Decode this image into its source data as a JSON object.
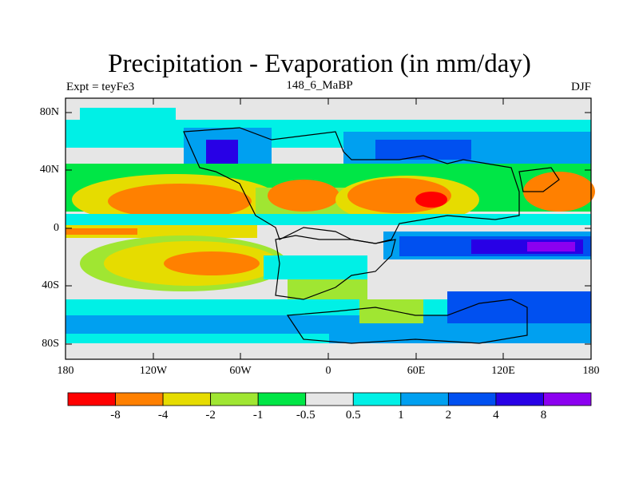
{
  "title": "Precipitation - Evaporation (in mm/day)",
  "subtitle_left": "Expt = teyFe3",
  "subtitle_center": "148_6_MaBP",
  "subtitle_right": "DJF",
  "lat_ticks": [
    "80N",
    "40N",
    "0",
    "40S",
    "80S"
  ],
  "lon_ticks": [
    "180",
    "120W",
    "60W",
    "0",
    "60E",
    "120E",
    "180"
  ],
  "colorbar": {
    "colors": [
      "#ff0000",
      "#ff8000",
      "#e6dc00",
      "#a0e632",
      "#00e646",
      "#e6e6e6",
      "#00f0e6",
      "#00a0f0",
      "#0050f0",
      "#2800e6",
      "#8c00f0"
    ],
    "labels": [
      "-8",
      "-4",
      "-2",
      "-1",
      "-0.5",
      "0.5",
      "1",
      "2",
      "4",
      "8"
    ]
  }
}
